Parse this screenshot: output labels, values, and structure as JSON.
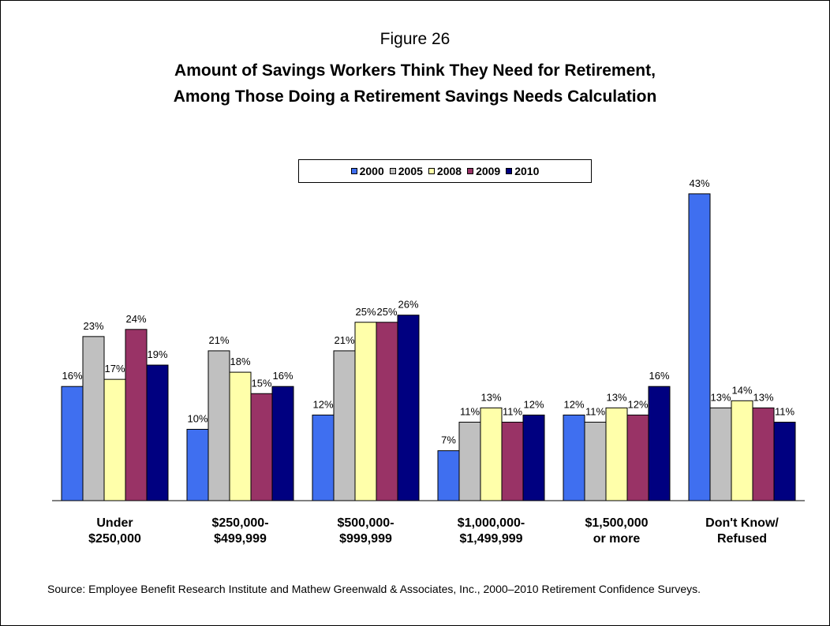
{
  "figure_label": "Figure 26",
  "title_lines": [
    "Amount of Savings Workers Think They Need for Retirement,",
    "Among Those Doing a Retirement Savings Needs Calculation"
  ],
  "source": "Source:  Employee Benefit Research Institute and Mathew Greenwald & Associates, Inc., 2000–2010 Retirement Confidence Surveys.",
  "colors": {
    "2000": "#3f6ff0",
    "2005": "#c0c0c0",
    "2008": "#ffffaa",
    "2009": "#993366",
    "2010": "#000080"
  },
  "chart_data": {
    "type": "bar",
    "title": "Amount of Savings Workers Think They Need for Retirement, Among Those Doing a Retirement Savings Needs Calculation",
    "xlabel": "",
    "ylabel": "",
    "ylim": [
      0,
      45
    ],
    "grid": false,
    "legend_position": "top-center",
    "categories": [
      [
        "Under",
        "$250,000"
      ],
      [
        "$250,000-",
        "$499,999"
      ],
      [
        "$500,000-",
        "$999,999"
      ],
      [
        "$1,000,000-",
        "$1,499,999"
      ],
      [
        "$1,500,000",
        "or more"
      ],
      [
        "Don't Know/",
        "Refused"
      ]
    ],
    "series": [
      {
        "name": "2000",
        "values": [
          16,
          10,
          12,
          7,
          12,
          43
        ]
      },
      {
        "name": "2005",
        "values": [
          23,
          21,
          21,
          11,
          11,
          13
        ]
      },
      {
        "name": "2008",
        "values": [
          17,
          18,
          25,
          13,
          13,
          14
        ]
      },
      {
        "name": "2009",
        "values": [
          24,
          15,
          25,
          11,
          12,
          13
        ]
      },
      {
        "name": "2010",
        "values": [
          19,
          16,
          26,
          12,
          16,
          11
        ]
      }
    ],
    "value_suffix": "%"
  }
}
